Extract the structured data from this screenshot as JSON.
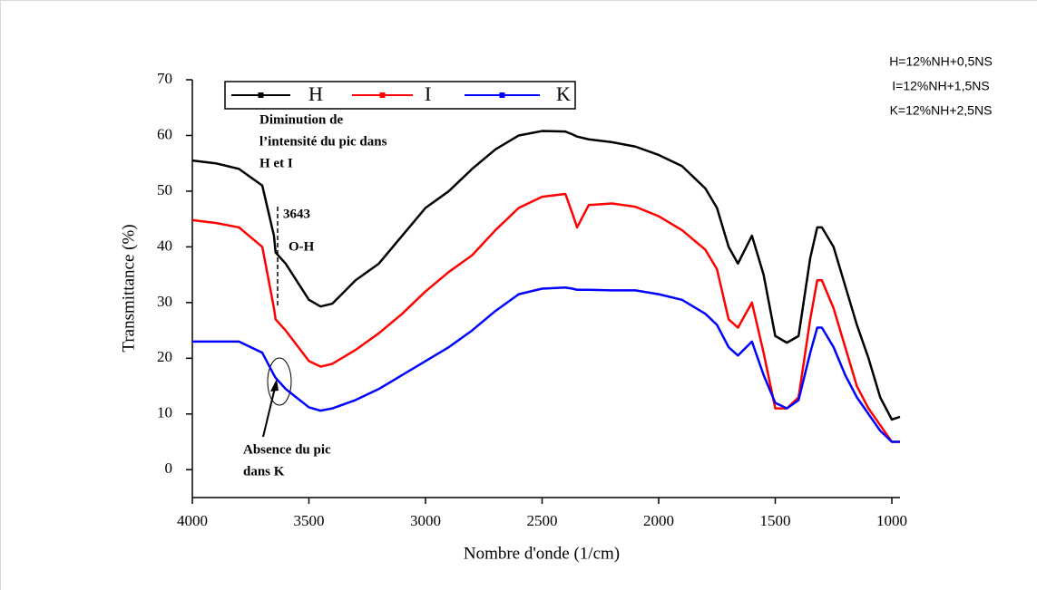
{
  "chart_data": {
    "type": "line",
    "xlabel": "Nombre d'onde (1/cm)",
    "ylabel": "Transmittance (%)",
    "x": [
      4000,
      3900,
      3800,
      3700,
      3650,
      3643,
      3600,
      3500,
      3450,
      3400,
      3300,
      3200,
      3100,
      3000,
      2900,
      2800,
      2700,
      2600,
      2500,
      2400,
      2370,
      2350,
      2300,
      2200,
      2100,
      2000,
      1900,
      1800,
      1750,
      1700,
      1660,
      1600,
      1550,
      1500,
      1450,
      1400,
      1350,
      1320,
      1300,
      1250,
      1200,
      1150,
      1100,
      1050,
      1000,
      965
    ],
    "series": [
      {
        "name": "H",
        "color": "#000000",
        "values": [
          55.5,
          55,
          54,
          51,
          42,
          39,
          37,
          30.5,
          29.3,
          29.8,
          34,
          37,
          42,
          47,
          50,
          54,
          57.5,
          60,
          60.8,
          60.7,
          60.2,
          59.8,
          59.3,
          58.8,
          58,
          56.5,
          54.5,
          50.5,
          47,
          40,
          37,
          42,
          35,
          24,
          22.8,
          24,
          38,
          43.5,
          43.5,
          40,
          33,
          26,
          20,
          13,
          9,
          9.5
        ]
      },
      {
        "name": "I",
        "color": "#ff0000",
        "values": [
          44.8,
          44.3,
          43.5,
          40,
          29,
          27,
          25,
          19.5,
          18.5,
          19,
          21.5,
          24.5,
          28,
          32,
          35.5,
          38.5,
          43,
          47,
          49,
          49.5,
          46,
          43.5,
          47.5,
          47.8,
          47.2,
          45.5,
          43,
          39.5,
          36,
          27,
          25.5,
          30,
          21,
          11,
          11,
          13,
          27,
          34,
          34,
          29,
          22,
          15,
          11,
          8,
          5,
          5
        ]
      },
      {
        "name": "K",
        "color": "#0000ff",
        "values": [
          23,
          23,
          23,
          21,
          17,
          16.5,
          14.5,
          11.2,
          10.6,
          11,
          12.5,
          14.5,
          17,
          19.5,
          22,
          25,
          28.5,
          31.5,
          32.5,
          32.7,
          32.5,
          32.3,
          32.3,
          32.2,
          32.2,
          31.5,
          30.5,
          28,
          26,
          22,
          20.5,
          23,
          17,
          12,
          11,
          12.5,
          21,
          25.5,
          25.5,
          22,
          17,
          13,
          10,
          7,
          5,
          5
        ]
      }
    ],
    "xlim": [
      4000,
      965
    ],
    "ylim": [
      -5,
      70
    ],
    "xticks": [
      4000,
      3500,
      3000,
      2500,
      2000,
      1500,
      1000
    ],
    "yticks": [
      0,
      10,
      20,
      30,
      40,
      50,
      60,
      70
    ],
    "legend": "upper left",
    "annotations": [
      [
        "Diminution de",
        "l’intensité du pic dans",
        "H et I"
      ],
      [
        "3643"
      ],
      [
        "O-H"
      ],
      [
        "Absence du pic",
        "dans K"
      ]
    ],
    "notes": [
      "H=12%NH+0,5NS",
      "I=12%NH+1,5NS",
      "K=12%NH+2,5NS"
    ]
  }
}
